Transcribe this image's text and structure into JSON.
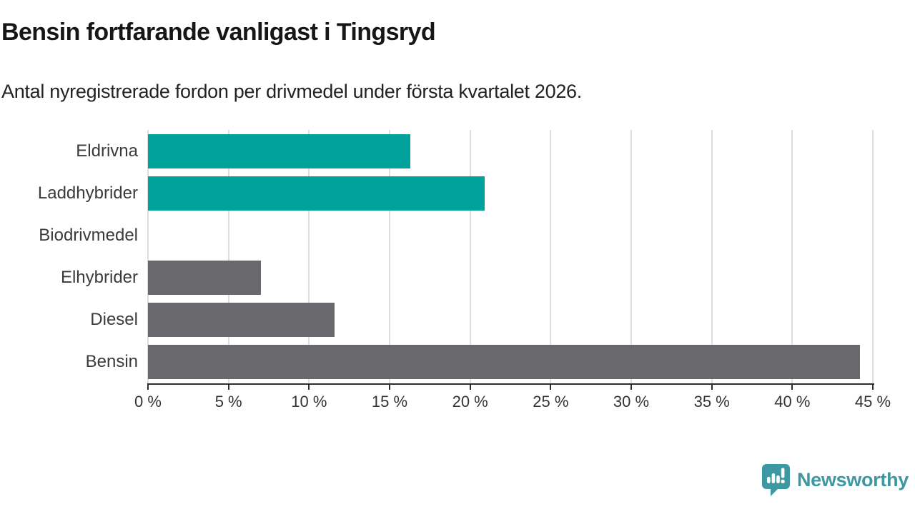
{
  "header": {
    "title": "Bensin fortfarande vanligast i Tingsryd",
    "subtitle": "Antal nyregistrerade fordon per drivmedel under första kvartalet 2026."
  },
  "chart_data": {
    "type": "bar",
    "orientation": "horizontal",
    "title": "Bensin fortfarande vanligast i Tingsryd",
    "subtitle": "Antal nyregistrerade fordon per drivmedel under första kvartalet 2026.",
    "categories": [
      "Eldrivna",
      "Laddhybrider",
      "Biodrivmedel",
      "Elhybrider",
      "Diesel",
      "Bensin"
    ],
    "values": [
      16.3,
      20.9,
      0,
      7.0,
      11.6,
      44.2
    ],
    "unit": "%",
    "bar_colors": [
      "#00a29b",
      "#00a29b",
      "#69696d",
      "#69696d",
      "#69696d",
      "#69696d"
    ],
    "xlim": [
      0,
      45
    ],
    "x_ticks": [
      0,
      5,
      10,
      15,
      20,
      25,
      30,
      35,
      40,
      45
    ],
    "x_tick_suffix": " %",
    "grid": "vertical",
    "legend": "none"
  },
  "branding": {
    "logo_text": "Newsworthy",
    "logo_color": "#3e98a1",
    "logo_icon": "speech-bubble-bar-chart-exclamation"
  },
  "colors": {
    "highlight_teal": "#00a29b",
    "neutral_gray": "#69696d",
    "axis": "#2e2e2e",
    "gridline": "#dedede",
    "background": "#ffffff",
    "title_text": "#161616",
    "label_text": "#3a3a3a"
  }
}
